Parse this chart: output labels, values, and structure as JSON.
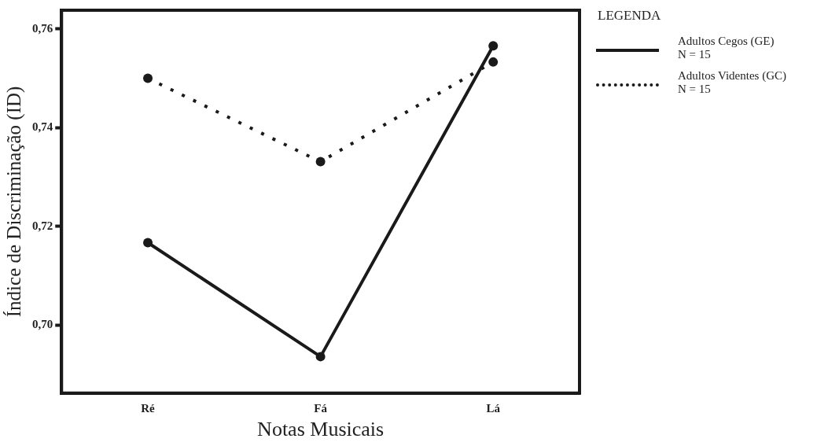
{
  "chart_data": {
    "type": "line",
    "xlabel": "Notas Musicais",
    "ylabel": "Índice de Discriminação (ID)",
    "legend_title": "LEGENDA",
    "legend": "right",
    "marker": "circle",
    "grid": false,
    "categories": [
      "Ré",
      "Fá",
      "Lá"
    ],
    "ylim": [
      0.6862,
      0.7638
    ],
    "yticks": [
      {
        "value": 0.7,
        "label": "0,70"
      },
      {
        "value": 0.72,
        "label": "0,72"
      },
      {
        "value": 0.74,
        "label": "0,74"
      },
      {
        "value": 0.76,
        "label": "0,76"
      }
    ],
    "series": [
      {
        "name": "Adultos Cegos (GE)\nN = 15",
        "color": "#1a1a1a",
        "line_style": "solid",
        "values": [
          0.7167,
          0.6936,
          0.7566
        ]
      },
      {
        "name": "Adultos Videntes  (GC)\nN = 15",
        "color": "#1a1a1a",
        "line_style": "dotted",
        "values": [
          0.75,
          0.7331,
          0.7533
        ]
      }
    ]
  }
}
